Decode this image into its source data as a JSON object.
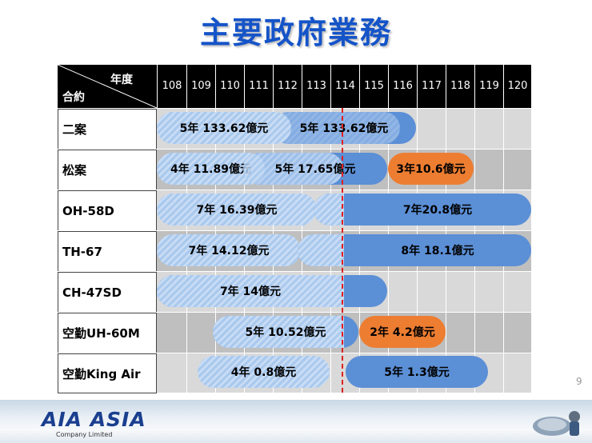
{
  "title": "主要政府業務",
  "header": {
    "year_label": "年度",
    "contract_label": "合約"
  },
  "years": [
    "108",
    "109",
    "110",
    "111",
    "112",
    "113",
    "114",
    "115",
    "116",
    "117",
    "118",
    "119",
    "120"
  ],
  "rows": [
    {
      "label": "二案"
    },
    {
      "label": "松案"
    },
    {
      "label": "OH-58D"
    },
    {
      "label": "TH-67"
    },
    {
      "label": "CH-47SD"
    },
    {
      "label": "空勤UH-60M"
    },
    {
      "label": "空勤King Air"
    }
  ],
  "bars": {
    "r0a": "5年 133.62億元",
    "r0b": "5年 133.62億元",
    "r1a": "4年 11.89億元",
    "r1b": "5年   17.65億元",
    "r1c": "3年10.6億元",
    "r2a": "7年 16.39億元",
    "r2b": "7年20.8億元",
    "r3a": "7年 14.12億元",
    "r3b": "8年 18.1億元",
    "r4a": "7年 14億元",
    "r5a": "5年 10.52億元",
    "r5b": "2年 4.2億元",
    "r6a": "4年 0.8億元",
    "r6b": "5年 1.3億元"
  },
  "colors": {
    "title": "#1554c8",
    "hatched_bar": "#a9c9ee",
    "solid_bar": "#5b8fd6",
    "orange_bar": "#ed7d31",
    "current_year_line": "#e02020"
  },
  "page_number": "9",
  "footer": {
    "logo": "AIA ASIA",
    "logo_sub": "Company Limited"
  }
}
